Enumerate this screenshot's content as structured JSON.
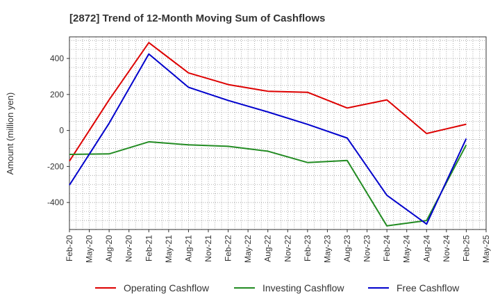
{
  "chart_data": {
    "type": "line",
    "title": "[2872]  Trend of 12-Month Moving Sum of Cashflows",
    "xlabel": "",
    "ylabel": "Amount (million yen)",
    "x": [
      "Feb-20",
      "May-20",
      "Aug-20",
      "Nov-20",
      "Feb-21",
      "May-21",
      "Aug-21",
      "Nov-21",
      "Feb-22",
      "May-22",
      "Aug-22",
      "Nov-22",
      "Feb-23",
      "May-23",
      "Aug-23",
      "Nov-23",
      "Feb-24",
      "May-24",
      "Aug-24",
      "Nov-24",
      "Feb-25",
      "May-25"
    ],
    "ylim": [
      -550,
      520
    ],
    "yticks": [
      -400,
      -200,
      0,
      200,
      400
    ],
    "grid": true,
    "legend_position": "bottom",
    "series": [
      {
        "name": "Operating Cashflow",
        "color": "#dd0000",
        "x": [
          "Feb-20",
          "Aug-20",
          "Feb-21",
          "Aug-21",
          "Feb-22",
          "Aug-22",
          "Feb-23",
          "Aug-23",
          "Feb-24",
          "Aug-24",
          "Feb-25"
        ],
        "values": [
          -170,
          170,
          488,
          320,
          255,
          218,
          212,
          125,
          170,
          -17,
          35
        ]
      },
      {
        "name": "Investing Cashflow",
        "color": "#228b22",
        "x": [
          "Feb-20",
          "Aug-20",
          "Feb-21",
          "Aug-21",
          "Feb-22",
          "Aug-22",
          "Feb-23",
          "Aug-23",
          "Feb-24",
          "Aug-24",
          "Feb-25"
        ],
        "values": [
          -133,
          -130,
          -63,
          -80,
          -88,
          -115,
          -178,
          -167,
          -530,
          -500,
          -80
        ]
      },
      {
        "name": "Free Cashflow",
        "color": "#0000cc",
        "x": [
          "Feb-20",
          "Aug-20",
          "Feb-21",
          "Aug-21",
          "Feb-22",
          "Aug-22",
          "Feb-23",
          "Aug-23",
          "Feb-24",
          "Aug-24",
          "Feb-25"
        ],
        "values": [
          -303,
          40,
          425,
          240,
          167,
          103,
          34,
          -42,
          -360,
          -520,
          -45
        ]
      }
    ]
  }
}
